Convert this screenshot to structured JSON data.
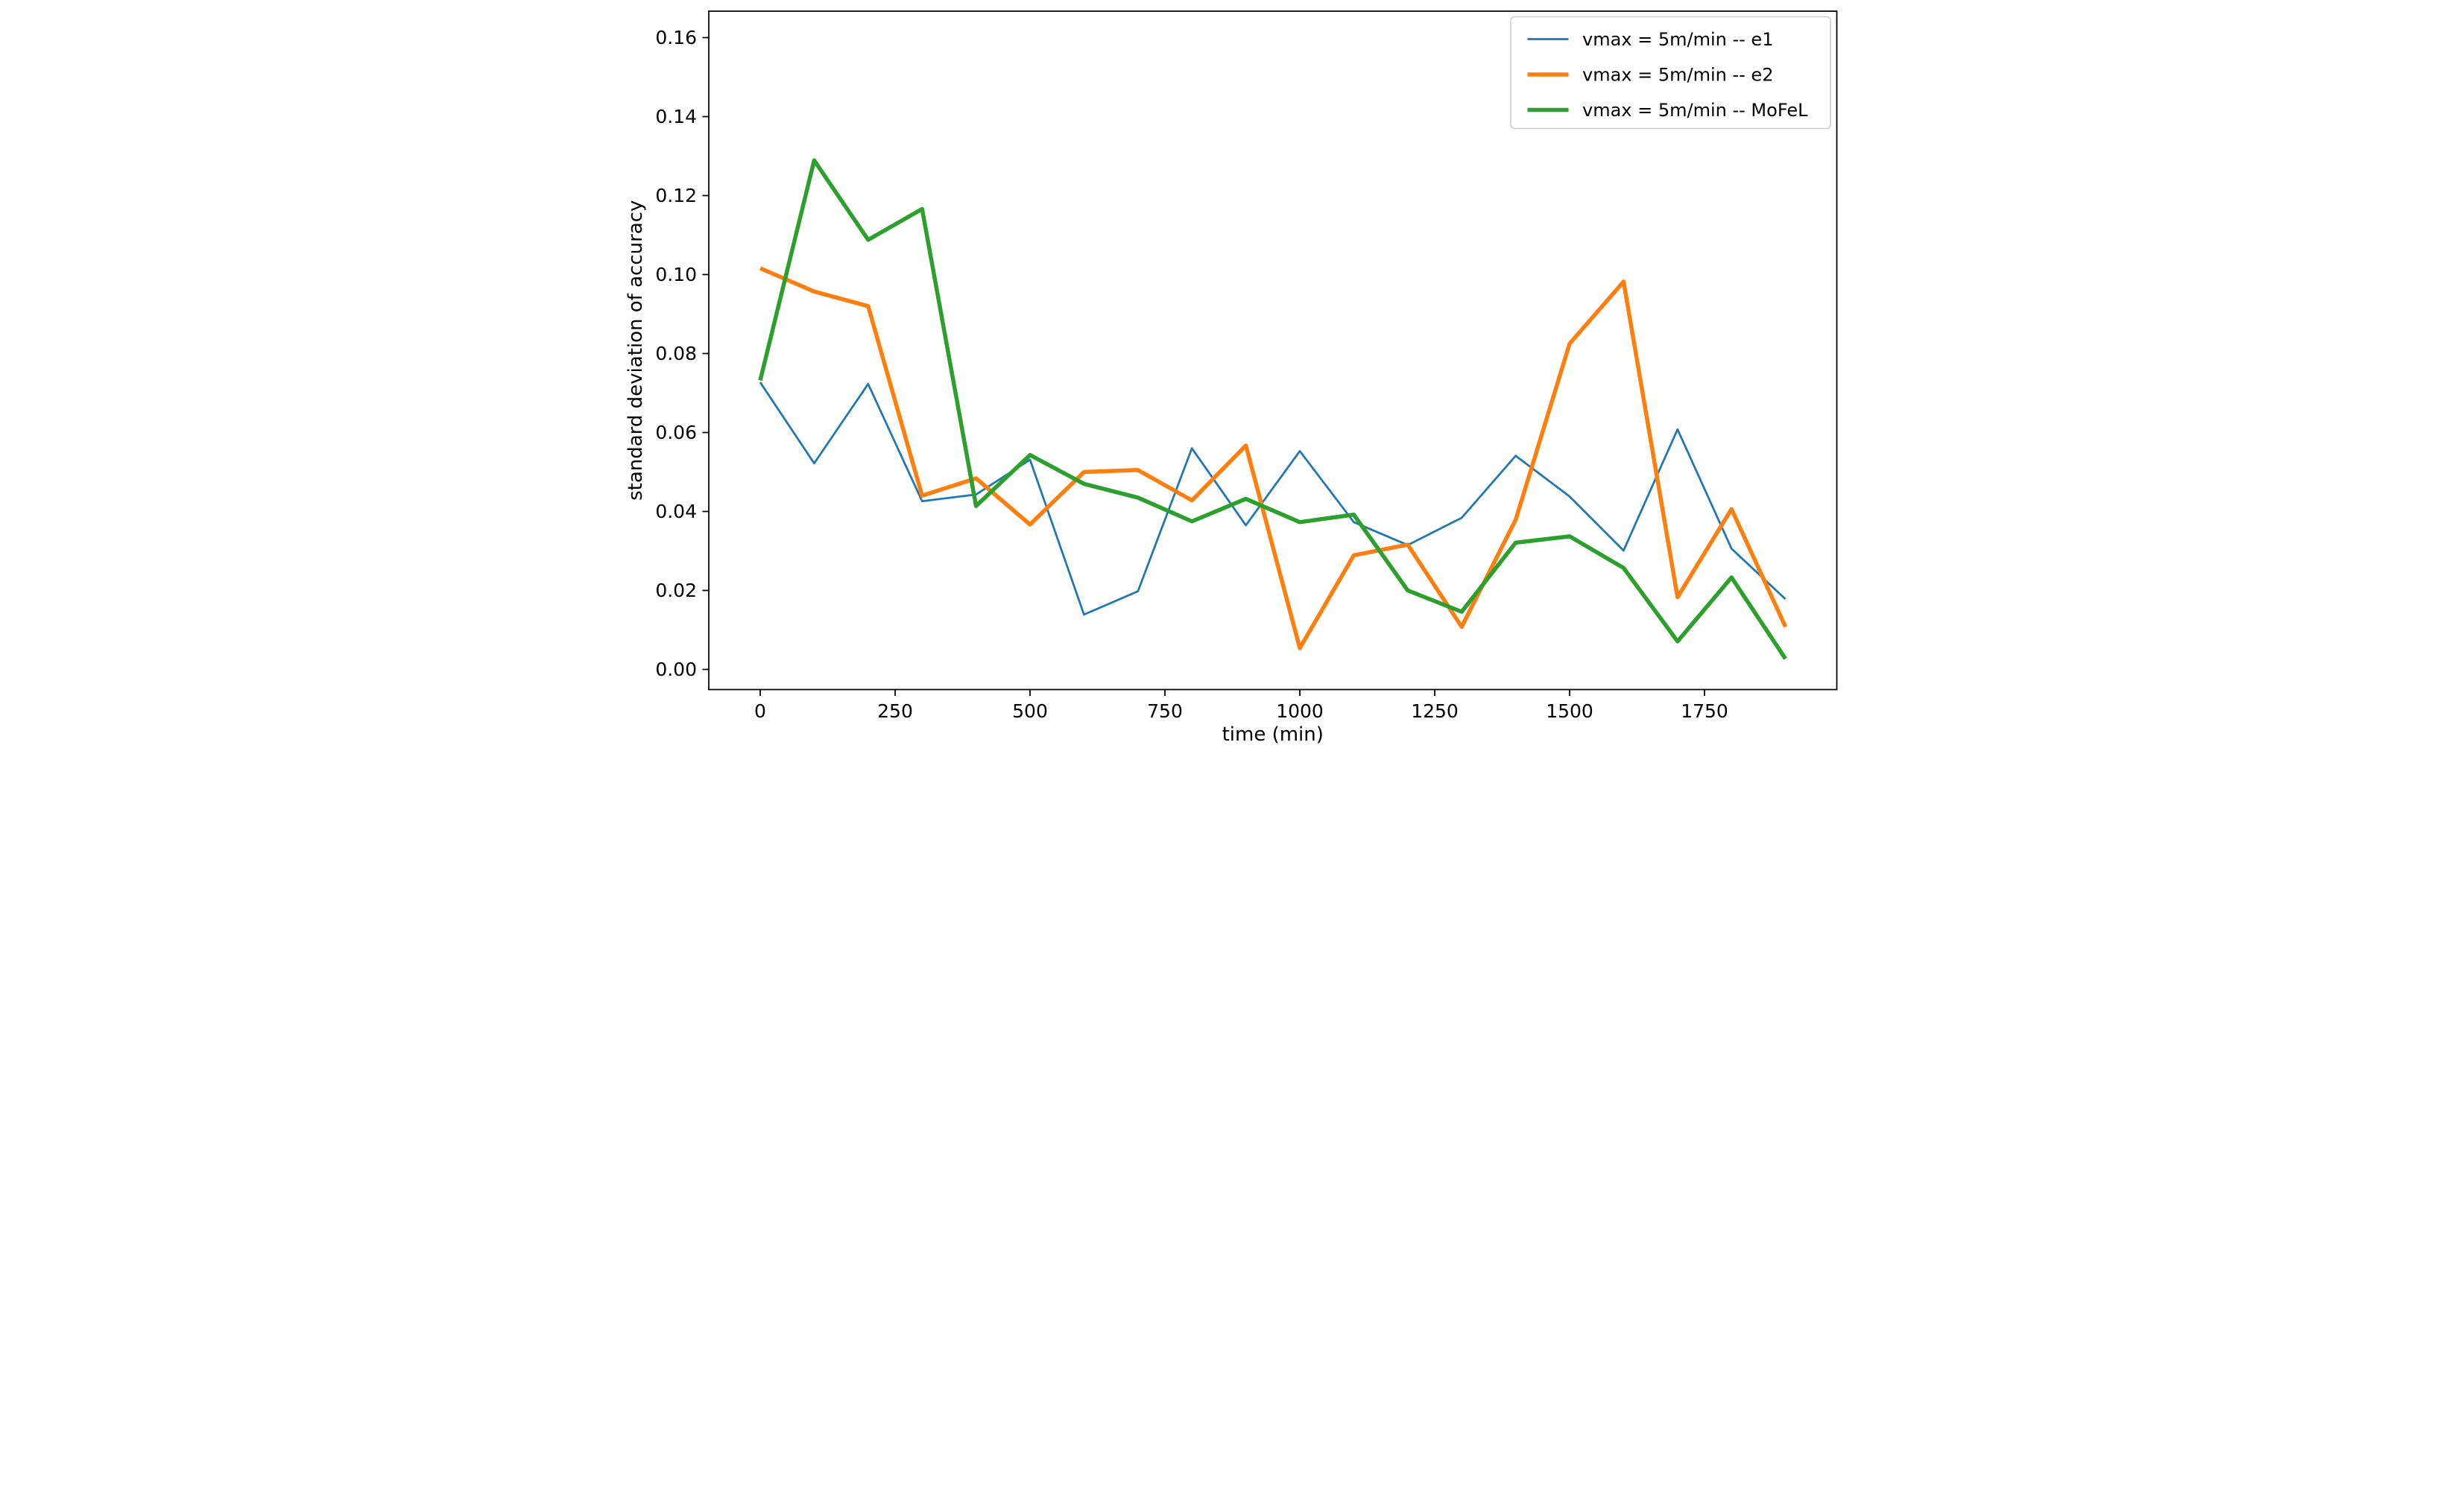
{
  "chart_data": {
    "type": "line",
    "title": "",
    "xlabel": "time (min)",
    "ylabel": "standard deviation of accuracy",
    "background": "#ffffff",
    "axis_color": "#000000",
    "grid": false,
    "legend_position": "upper right",
    "legend_border_color": "#cccccc",
    "x": [
      0,
      100,
      200,
      300,
      400,
      500,
      600,
      700,
      800,
      900,
      1000,
      1100,
      1200,
      1300,
      1400,
      1500,
      1600,
      1700,
      1800,
      1900
    ],
    "series": [
      {
        "name": "vmax = 5m/min -- e1",
        "color": "#1f77b4",
        "linewidth": 5.5,
        "values": [
          0.0727,
          0.0522,
          0.0723,
          0.0426,
          0.0443,
          0.0531,
          0.0139,
          0.0198,
          0.056,
          0.0365,
          0.0553,
          0.0373,
          0.0315,
          0.0384,
          0.0541,
          0.0438,
          0.0301,
          0.0608,
          0.0306,
          0.0178
        ]
      },
      {
        "name": "vmax = 5m/min -- e2",
        "color": "#ff7f0e",
        "linewidth": 11,
        "values": [
          0.1016,
          0.0957,
          0.092,
          0.044,
          0.0484,
          0.0367,
          0.05,
          0.0505,
          0.0428,
          0.0567,
          0.0054,
          0.0289,
          0.0316,
          0.0108,
          0.0379,
          0.0825,
          0.0982,
          0.0183,
          0.0406,
          0.0108
        ]
      },
      {
        "name": "vmax = 5m/min -- MoFeL",
        "color": "#2ca02c",
        "linewidth": 11,
        "values": [
          0.0732,
          0.1289,
          0.1088,
          0.1166,
          0.0414,
          0.0543,
          0.047,
          0.0435,
          0.0375,
          0.0432,
          0.0373,
          0.0392,
          0.02,
          0.0146,
          0.0321,
          0.0337,
          0.0257,
          0.0071,
          0.0233,
          0.0027
        ]
      }
    ],
    "xticks": [
      0,
      250,
      500,
      750,
      1000,
      1250,
      1500,
      1750
    ],
    "ytick_labels": [
      "0.00",
      "0.02",
      "0.04",
      "0.06",
      "0.08",
      "0.10",
      "0.12",
      "0.14",
      "0.16"
    ],
    "yticks": [
      0.0,
      0.02,
      0.04,
      0.06,
      0.08,
      0.1,
      0.12,
      0.14,
      0.16
    ],
    "xlim": [
      -95,
      1995
    ],
    "ylim": [
      -0.0051,
      0.1667
    ]
  }
}
